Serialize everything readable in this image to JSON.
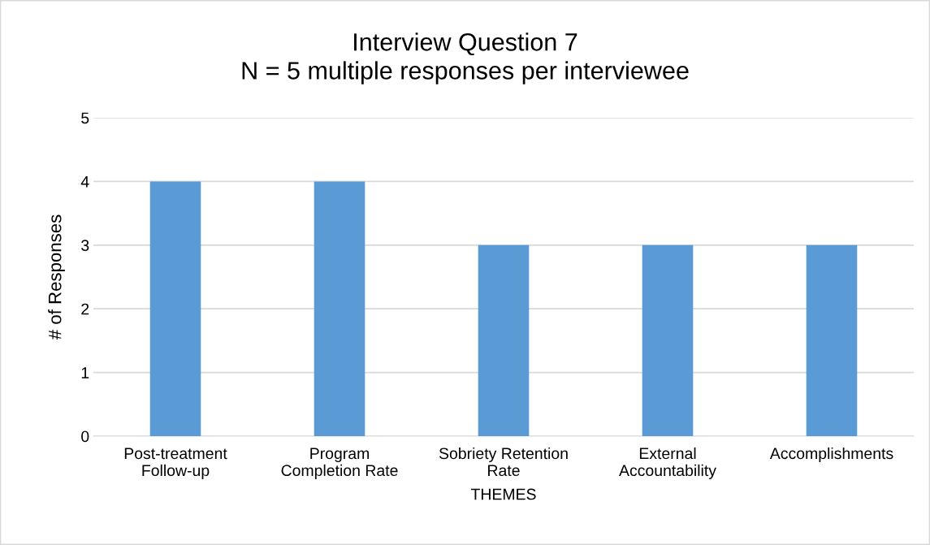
{
  "chart_data": {
    "type": "bar",
    "title": "Interview Question 7\nN = 5 multiple responses per interviewee",
    "xlabel": "THEMES",
    "ylabel": "# of Responses",
    "categories": [
      "Post-treatment\nFollow-up",
      "Program\nCompletion Rate",
      "Sobriety Retention\nRate",
      "External\nAccountability",
      "Accomplishments"
    ],
    "values": [
      4,
      4,
      3,
      3,
      3
    ],
    "color": "#5b9bd5",
    "ylim": [
      0,
      5
    ],
    "yticks": [
      0,
      1,
      2,
      3,
      4,
      5
    ],
    "grid": "y",
    "legend": false
  }
}
